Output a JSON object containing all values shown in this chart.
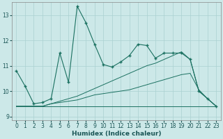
{
  "xlabel": "Humidex (Indice chaleur)",
  "xlim": [
    -0.5,
    23.5
  ],
  "ylim": [
    8.85,
    13.5
  ],
  "yticks": [
    9,
    10,
    11,
    12,
    13
  ],
  "xticks": [
    0,
    1,
    2,
    3,
    4,
    5,
    6,
    7,
    8,
    9,
    10,
    11,
    12,
    13,
    14,
    15,
    16,
    17,
    18,
    19,
    20,
    21,
    22,
    23
  ],
  "bg_color": "#cce8e8",
  "grid_color": "#aad0d0",
  "line_color": "#1a7060",
  "line1_x": [
    0,
    1,
    2,
    3,
    4,
    5,
    6,
    7,
    8,
    9,
    10,
    11,
    12,
    13,
    14,
    15,
    16,
    17,
    18,
    19,
    20,
    21,
    22,
    23
  ],
  "line1_y": [
    10.8,
    10.2,
    9.5,
    9.55,
    9.7,
    11.5,
    10.35,
    13.35,
    12.7,
    11.85,
    11.05,
    10.95,
    11.15,
    11.4,
    11.85,
    11.8,
    11.3,
    11.5,
    11.5,
    11.5,
    11.25,
    10.0,
    9.7,
    9.4
  ],
  "line2_x": [
    0,
    1,
    2,
    3,
    4,
    5,
    6,
    7,
    8,
    9,
    10,
    11,
    12,
    13,
    14,
    15,
    16,
    17,
    18,
    19,
    20,
    21,
    22,
    23
  ],
  "line2_y": [
    9.4,
    9.4,
    9.4,
    9.4,
    9.4,
    9.4,
    9.4,
    9.4,
    9.4,
    9.4,
    9.4,
    9.4,
    9.4,
    9.4,
    9.4,
    9.4,
    9.4,
    9.4,
    9.4,
    9.4,
    9.4,
    9.4,
    9.4,
    9.4
  ],
  "line3_x": [
    0,
    1,
    2,
    3,
    4,
    5,
    6,
    7,
    8,
    9,
    10,
    11,
    12,
    13,
    14,
    15,
    16,
    17,
    18,
    19,
    20,
    21,
    22,
    23
  ],
  "line3_y": [
    9.4,
    9.4,
    9.4,
    9.4,
    9.5,
    9.55,
    9.6,
    9.65,
    9.75,
    9.85,
    9.9,
    9.95,
    10.0,
    10.05,
    10.15,
    10.25,
    10.35,
    10.45,
    10.55,
    10.65,
    10.7,
    10.05,
    9.7,
    9.4
  ],
  "line4_x": [
    0,
    1,
    2,
    3,
    4,
    5,
    6,
    7,
    8,
    9,
    10,
    11,
    12,
    13,
    14,
    15,
    16,
    17,
    18,
    19,
    20,
    21,
    22,
    23
  ],
  "line4_y": [
    9.4,
    9.4,
    9.4,
    9.4,
    9.5,
    9.6,
    9.7,
    9.8,
    9.95,
    10.1,
    10.25,
    10.4,
    10.55,
    10.7,
    10.85,
    11.0,
    11.1,
    11.25,
    11.4,
    11.55,
    11.25,
    10.0,
    9.7,
    9.4
  ]
}
